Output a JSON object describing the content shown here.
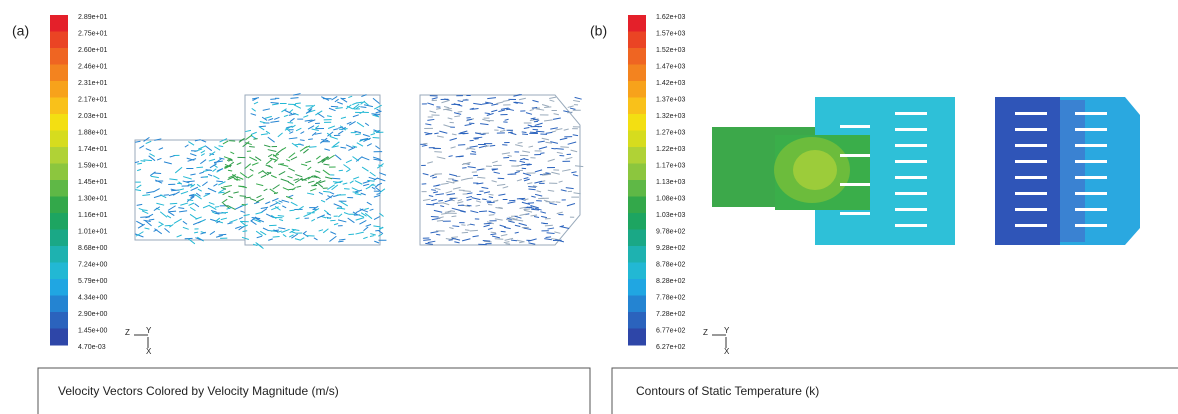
{
  "panels": [
    {
      "label": "(a)",
      "colorbar": [
        "2.89e+01",
        "2.75e+01",
        "2.60e+01",
        "2.46e+01",
        "2.31e+01",
        "2.17e+01",
        "2.03e+01",
        "1.88e+01",
        "1.74e+01",
        "1.59e+01",
        "1.45e+01",
        "1.30e+01",
        "1.16e+01",
        "1.01e+01",
        "8.68e+00",
        "7.24e+00",
        "5.79e+00",
        "4.34e+00",
        "2.90e+00",
        "1.45e+00",
        "4.70e-03"
      ],
      "axes": {
        "z": "Z",
        "y": "Y",
        "x": "X"
      },
      "caption": "Velocity Vectors Colored by Velocity Magnitude (m/s)"
    },
    {
      "label": "(b)",
      "colorbar": [
        "1.62e+03",
        "1.57e+03",
        "1.52e+03",
        "1.47e+03",
        "1.42e+03",
        "1.37e+03",
        "1.32e+03",
        "1.27e+03",
        "1.22e+03",
        "1.17e+03",
        "1.13e+03",
        "1.08e+03",
        "1.03e+03",
        "9.78e+02",
        "9.28e+02",
        "8.78e+02",
        "8.28e+02",
        "7.78e+02",
        "7.28e+02",
        "6.77e+02",
        "6.27e+02"
      ],
      "axes": {
        "z": "Z",
        "y": "Y",
        "x": "X"
      },
      "caption": "Contours of Static Temperature (k)"
    }
  ]
}
